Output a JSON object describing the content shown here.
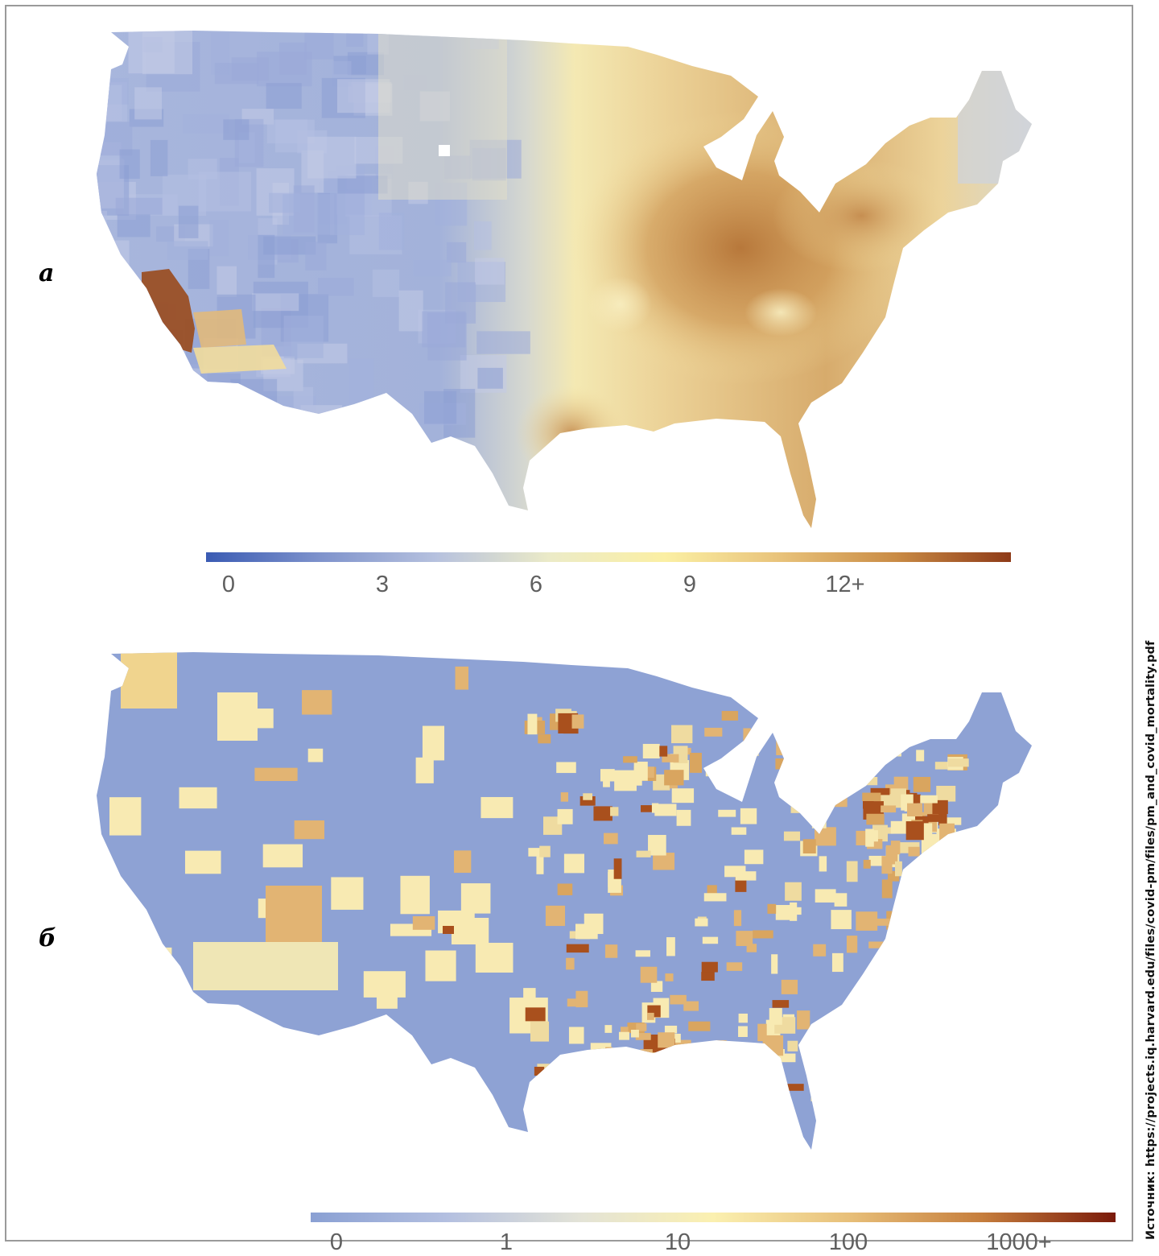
{
  "panels": [
    {
      "label": "а",
      "colorbar": {
        "ticks": [
          "0",
          "3",
          "6",
          "9",
          "12+"
        ],
        "colors": [
          "#3a5bb3",
          "#7f93cc",
          "#b6c1de",
          "#ecebc7",
          "#fbefa3",
          "#e8c27a",
          "#c98b45",
          "#8e3a17"
        ]
      },
      "map_palette": {
        "low": "#9eaedb",
        "mid": "#f6eab0",
        "high": "#b9783a"
      }
    },
    {
      "label": "б",
      "colorbar": {
        "ticks": [
          "0",
          "1",
          "10",
          "100",
          "1000+"
        ],
        "colors": [
          "#8aa0d3",
          "#b3bfe0",
          "#e3e3d7",
          "#fbf0b0",
          "#e8c07a",
          "#c67e3d",
          "#7a1a0a"
        ]
      },
      "map_palette": {
        "base": "#8ea2d4",
        "light": "#f8eab2",
        "mid": "#e2b473",
        "dark": "#a9501d"
      }
    }
  ],
  "source": "Источник: https://projects.iq.harvard.edu/files/covid-pm/files/pm_and_covid_mortality.pdf"
}
